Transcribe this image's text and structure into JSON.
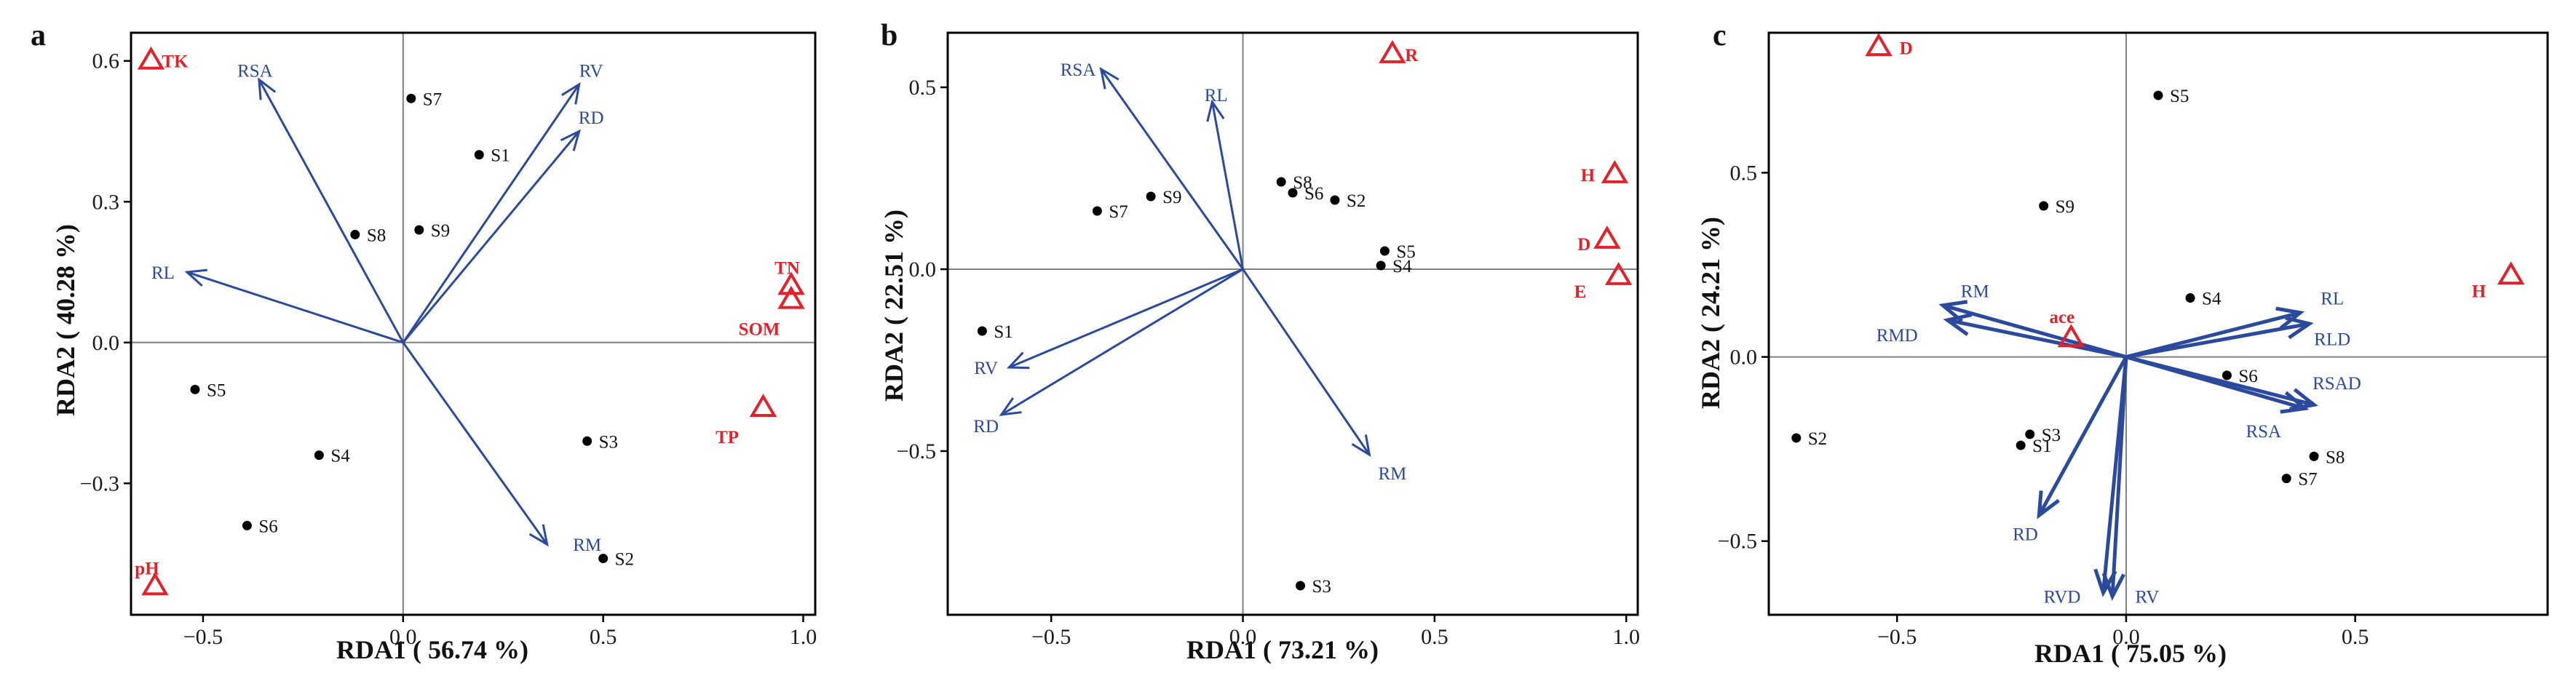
{
  "colors": {
    "arrow": "#2b4a9c",
    "env": "#e3212b",
    "point": "#000000",
    "frame": "#000000",
    "zero": "#808080"
  },
  "chart_data": [
    {
      "type": "scatter",
      "panel": "a",
      "xlabel": "RDA1 ( 56.74 %)",
      "ylabel": "RDA2 ( 40.28 %)",
      "xlim": [
        -0.68,
        1.03
      ],
      "ylim": [
        -0.58,
        0.66
      ],
      "xticks": [
        -0.5,
        0.0,
        0.5,
        1.0
      ],
      "xtick_labels": [
        "−0.5",
        "0.0",
        "0.5",
        "1.0"
      ],
      "yticks": [
        -0.3,
        0.0,
        0.3,
        0.6
      ],
      "ytick_labels": [
        "−0.3",
        "0.0",
        "0.3",
        "0.6"
      ],
      "arrow_width": 3,
      "samples": [
        {
          "label": "S1",
          "x": 0.19,
          "y": 0.4
        },
        {
          "label": "S2",
          "x": 0.5,
          "y": -0.46
        },
        {
          "label": "S3",
          "x": 0.46,
          "y": -0.21
        },
        {
          "label": "S4",
          "x": -0.21,
          "y": -0.24
        },
        {
          "label": "S5",
          "x": -0.52,
          "y": -0.1
        },
        {
          "label": "S6",
          "x": -0.39,
          "y": -0.39
        },
        {
          "label": "S7",
          "x": 0.02,
          "y": 0.52
        },
        {
          "label": "S8",
          "x": -0.12,
          "y": 0.23
        },
        {
          "label": "S9",
          "x": 0.04,
          "y": 0.24
        }
      ],
      "arrows": [
        {
          "label": "RSA",
          "x": -0.36,
          "y": 0.56,
          "lx": -0.37,
          "ly": 0.58,
          "anchor": "middle"
        },
        {
          "label": "RV",
          "x": 0.44,
          "y": 0.55,
          "lx": 0.47,
          "ly": 0.58,
          "anchor": "middle"
        },
        {
          "label": "RD",
          "x": 0.44,
          "y": 0.45,
          "lx": 0.47,
          "ly": 0.48,
          "anchor": "middle"
        },
        {
          "label": "RL",
          "x": -0.54,
          "y": 0.15,
          "lx": -0.6,
          "ly": 0.15,
          "anchor": "middle"
        },
        {
          "label": "RM",
          "x": 0.36,
          "y": -0.43,
          "lx": 0.46,
          "ly": -0.43,
          "anchor": "middle"
        }
      ],
      "env": [
        {
          "label": "TK",
          "x": -0.63,
          "y": 0.6,
          "lx": -0.57,
          "ly": 0.6,
          "anchor": "middle"
        },
        {
          "label": "TN",
          "x": 0.97,
          "y": 0.12,
          "lx": 0.96,
          "ly": 0.16,
          "anchor": "middle"
        },
        {
          "label": "SOM",
          "x": 0.97,
          "y": 0.09,
          "lx": 0.89,
          "ly": 0.03,
          "anchor": "middle"
        },
        {
          "label": "TP",
          "x": 0.9,
          "y": -0.14,
          "lx": 0.81,
          "ly": -0.2,
          "anchor": "middle"
        },
        {
          "label": "pH",
          "x": -0.62,
          "y": -0.52,
          "lx": -0.64,
          "ly": -0.48,
          "anchor": "middle"
        }
      ]
    },
    {
      "type": "scatter",
      "panel": "b",
      "xlabel": "RDA1 ( 73.21 %)",
      "ylabel": "RDA2 ( 22.51 %)",
      "xlim": [
        -0.77,
        1.03
      ],
      "ylim": [
        -0.95,
        0.65
      ],
      "xticks": [
        -0.5,
        0.0,
        0.5,
        1.0
      ],
      "xtick_labels": [
        "−0.5",
        "0.0",
        "0.5",
        "1.0"
      ],
      "yticks": [
        -0.5,
        0.0,
        0.5
      ],
      "ytick_labels": [
        "−0.5",
        "0.0",
        "0.5"
      ],
      "arrow_width": 3,
      "samples": [
        {
          "label": "S1",
          "x": -0.68,
          "y": -0.17
        },
        {
          "label": "S2",
          "x": 0.24,
          "y": 0.19
        },
        {
          "label": "S3",
          "x": 0.15,
          "y": -0.87
        },
        {
          "label": "S4",
          "x": 0.36,
          "y": 0.01
        },
        {
          "label": "S5",
          "x": 0.37,
          "y": 0.05
        },
        {
          "label": "S6",
          "x": 0.13,
          "y": 0.21
        },
        {
          "label": "S7",
          "x": -0.38,
          "y": 0.16
        },
        {
          "label": "S8",
          "x": 0.1,
          "y": 0.24
        },
        {
          "label": "S9",
          "x": -0.24,
          "y": 0.2
        }
      ],
      "arrows": [
        {
          "label": "RSA",
          "x": -0.37,
          "y": 0.55,
          "lx": -0.43,
          "ly": 0.55,
          "anchor": "middle"
        },
        {
          "label": "RL",
          "x": -0.08,
          "y": 0.46,
          "lx": -0.07,
          "ly": 0.48,
          "anchor": "middle"
        },
        {
          "label": "RV",
          "x": -0.61,
          "y": -0.27,
          "lx": -0.67,
          "ly": -0.27,
          "anchor": "middle"
        },
        {
          "label": "RD",
          "x": -0.63,
          "y": -0.4,
          "lx": -0.67,
          "ly": -0.43,
          "anchor": "middle"
        },
        {
          "label": "RM",
          "x": 0.33,
          "y": -0.51,
          "lx": 0.39,
          "ly": -0.56,
          "anchor": "middle"
        }
      ],
      "env": [
        {
          "label": "R",
          "x": 0.39,
          "y": 0.59,
          "lx": 0.44,
          "ly": 0.59,
          "anchor": "middle"
        },
        {
          "label": "H",
          "x": 0.97,
          "y": 0.26,
          "lx": 0.9,
          "ly": 0.26,
          "anchor": "middle"
        },
        {
          "label": "D",
          "x": 0.95,
          "y": 0.08,
          "lx": 0.89,
          "ly": 0.07,
          "anchor": "middle"
        },
        {
          "label": "E",
          "x": 0.98,
          "y": -0.02,
          "lx": 0.88,
          "ly": -0.06,
          "anchor": "middle"
        }
      ]
    },
    {
      "type": "scatter",
      "panel": "c",
      "xlabel": "RDA1 ( 75.05 %)",
      "ylabel": "RDA2 ( 24.21 %)",
      "xlim": [
        -0.78,
        0.92
      ],
      "ylim": [
        -0.7,
        0.88
      ],
      "xticks": [
        -0.5,
        0.0,
        0.5
      ],
      "xtick_labels": [
        "−0.5",
        "0.0",
        "0.5"
      ],
      "yticks": [
        -0.5,
        0.0,
        0.5
      ],
      "ytick_labels": [
        "−0.5",
        "0.0",
        "0.5"
      ],
      "arrow_width": 5,
      "samples": [
        {
          "label": "S1",
          "x": -0.23,
          "y": -0.24
        },
        {
          "label": "S2",
          "x": -0.72,
          "y": -0.22
        },
        {
          "label": "S3",
          "x": -0.21,
          "y": -0.21
        },
        {
          "label": "S4",
          "x": 0.14,
          "y": 0.16
        },
        {
          "label": "S5",
          "x": 0.07,
          "y": 0.71
        },
        {
          "label": "S6",
          "x": 0.22,
          "y": -0.05
        },
        {
          "label": "S7",
          "x": 0.35,
          "y": -0.33
        },
        {
          "label": "S8",
          "x": 0.41,
          "y": -0.27
        },
        {
          "label": "S9",
          "x": -0.18,
          "y": 0.41
        }
      ],
      "arrows": [
        {
          "label": "RM",
          "x": -0.4,
          "y": 0.14,
          "lx": -0.33,
          "ly": 0.18,
          "anchor": "middle"
        },
        {
          "label": "RMD",
          "x": -0.39,
          "y": 0.1,
          "lx": -0.5,
          "ly": 0.06,
          "anchor": "middle"
        },
        {
          "label": "RL",
          "x": 0.38,
          "y": 0.12,
          "lx": 0.45,
          "ly": 0.16,
          "anchor": "middle"
        },
        {
          "label": "RLD",
          "x": 0.4,
          "y": 0.09,
          "lx": 0.45,
          "ly": 0.05,
          "anchor": "middle"
        },
        {
          "label": "RSAD",
          "x": 0.41,
          "y": -0.13,
          "lx": 0.46,
          "ly": -0.07,
          "anchor": "middle"
        },
        {
          "label": "RSA",
          "x": 0.39,
          "y": -0.14,
          "lx": 0.3,
          "ly": -0.2,
          "anchor": "middle"
        },
        {
          "label": "RD",
          "x": -0.19,
          "y": -0.43,
          "lx": -0.22,
          "ly": -0.48,
          "anchor": "middle"
        },
        {
          "label": "RVD",
          "x": -0.05,
          "y": -0.64,
          "lx": -0.18,
          "ly": -0.65,
          "anchor": "start"
        },
        {
          "label": "RV",
          "x": -0.03,
          "y": -0.65,
          "lx": 0.02,
          "ly": -0.65,
          "anchor": "start"
        }
      ],
      "env": [
        {
          "label": "D",
          "x": -0.54,
          "y": 0.84,
          "lx": -0.48,
          "ly": 0.84,
          "anchor": "middle"
        },
        {
          "label": "H",
          "x": 0.84,
          "y": 0.22,
          "lx": 0.77,
          "ly": 0.18,
          "anchor": "middle"
        },
        {
          "label": "ace",
          "x": -0.12,
          "y": 0.05,
          "lx": -0.14,
          "ly": 0.11,
          "anchor": "middle"
        }
      ]
    }
  ]
}
